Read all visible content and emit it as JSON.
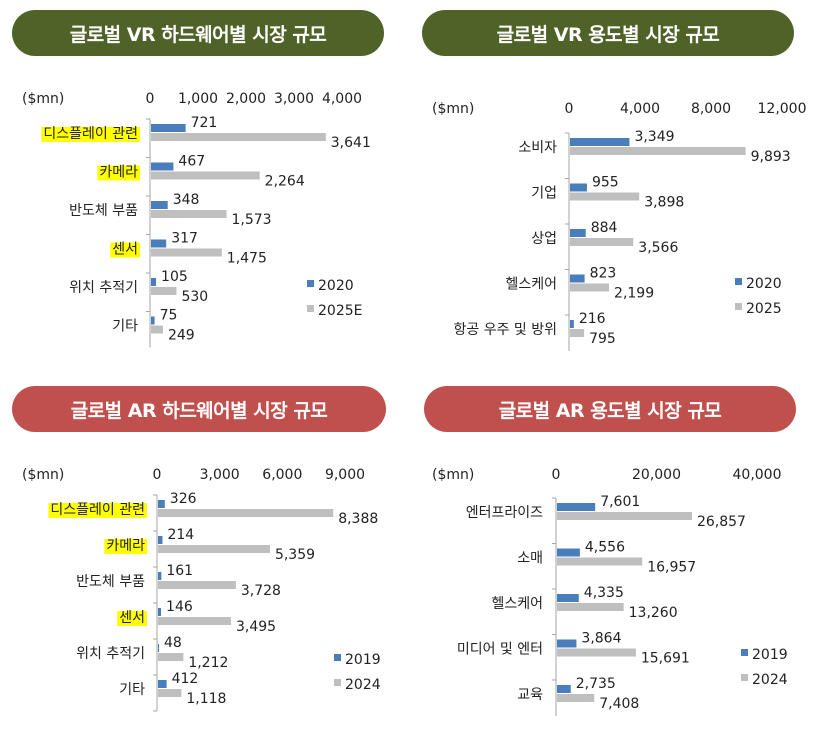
{
  "chart_data": [
    {
      "type": "bar",
      "title": "글로벌 VR 하드웨어별 시장 규모",
      "unit_label": "($mn)",
      "categories": [
        "디스플레이 관련",
        "카메라",
        "반도체 부품",
        "센서",
        "위치 추적기",
        "기타"
      ],
      "highlighted_categories": [
        "디스플레이 관련",
        "카메라",
        "센서"
      ],
      "series": [
        {
          "name": "2020",
          "values": [
            721,
            467,
            348,
            317,
            105,
            75
          ],
          "labels": [
            "721",
            "467",
            "348",
            "317",
            "105",
            "75"
          ],
          "color": "#4a7ebb"
        },
        {
          "name": "2025E",
          "values": [
            3641,
            2264,
            1573,
            1475,
            530,
            249
          ],
          "labels": [
            "3,641",
            "2,264",
            "1,573",
            "1,475",
            "530",
            "249"
          ],
          "color": "#bfbfbf"
        }
      ],
      "xlim": [
        0,
        4000
      ],
      "ticks": [
        0,
        1000,
        2000,
        3000,
        4000
      ],
      "tick_labels": [
        "0",
        "1,000",
        "2,000",
        "3,000",
        "4,000"
      ],
      "orientation": "horizontal",
      "theme": "vr"
    },
    {
      "type": "bar",
      "title": "글로벌 VR 용도별 시장 규모",
      "unit_label": "($mn)",
      "categories": [
        "소비자",
        "기업",
        "상업",
        "헬스케어",
        "항공 우주 및 방위"
      ],
      "highlighted_categories": [],
      "series": [
        {
          "name": "2020",
          "values": [
            3349,
            955,
            884,
            823,
            216
          ],
          "labels": [
            "3,349",
            "955",
            "884",
            "823",
            "216"
          ],
          "color": "#4a7ebb"
        },
        {
          "name": "2025",
          "values": [
            9893,
            3898,
            3566,
            2199,
            795
          ],
          "labels": [
            "9,893",
            "3,898",
            "3,566",
            "2,199",
            "795"
          ],
          "color": "#bfbfbf"
        }
      ],
      "xlim": [
        0,
        12000
      ],
      "ticks": [
        0,
        4000,
        8000,
        12000
      ],
      "tick_labels": [
        "0",
        "4,000",
        "8,000",
        "12,000"
      ],
      "orientation": "horizontal",
      "theme": "vr"
    },
    {
      "type": "bar",
      "title": "글로벌 AR 하드웨어별 시장 규모",
      "unit_label": "($mn)",
      "categories": [
        "디스플레이 관련",
        "카메라",
        "반도체 부품",
        "센서",
        "위치 추적기",
        "기타"
      ],
      "highlighted_categories": [
        "디스플레이 관련",
        "카메라",
        "센서"
      ],
      "series": [
        {
          "name": "2019",
          "values": [
            326,
            214,
            161,
            146,
            48,
            412
          ],
          "labels": [
            "326",
            "214",
            "161",
            "146",
            "48",
            "412"
          ],
          "color": "#4a7ebb"
        },
        {
          "name": "2024",
          "values": [
            8388,
            5359,
            3728,
            3495,
            1212,
            1118
          ],
          "labels": [
            "8,388",
            "5,359",
            "3,728",
            "3,495",
            "1,212",
            "1,118"
          ],
          "color": "#bfbfbf"
        }
      ],
      "xlim": [
        0,
        9000
      ],
      "ticks": [
        0,
        3000,
        6000,
        9000
      ],
      "tick_labels": [
        "0",
        "3,000",
        "6,000",
        "9,000"
      ],
      "orientation": "horizontal",
      "theme": "ar"
    },
    {
      "type": "bar",
      "title": "글로벌 AR 용도별 시장 규모",
      "unit_label": "($mn)",
      "categories": [
        "엔터프라이즈",
        "소매",
        "헬스케어",
        "미디어 및 엔터",
        "교육"
      ],
      "highlighted_categories": [],
      "series": [
        {
          "name": "2019",
          "values": [
            7601,
            4556,
            4335,
            3864,
            2735
          ],
          "labels": [
            "7,601",
            "4,556",
            "4,335",
            "3,864",
            "2,735"
          ],
          "color": "#4a7ebb"
        },
        {
          "name": "2024",
          "values": [
            26857,
            16957,
            13260,
            15691,
            7408
          ],
          "labels": [
            "26,857",
            "16,957",
            "13,260",
            "15,691",
            "7,408"
          ],
          "color": "#bfbfbf"
        }
      ],
      "xlim": [
        0,
        40000
      ],
      "ticks": [
        0,
        20000,
        40000
      ],
      "tick_labels": [
        "0",
        "20,000",
        "40,000"
      ],
      "orientation": "horizontal",
      "theme": "ar"
    }
  ],
  "colors": {
    "vr_pill": "#4f6228",
    "ar_pill": "#c0504d",
    "highlight": "#ffff00",
    "series_primary": "#4a7ebb",
    "series_secondary": "#bfbfbf"
  }
}
